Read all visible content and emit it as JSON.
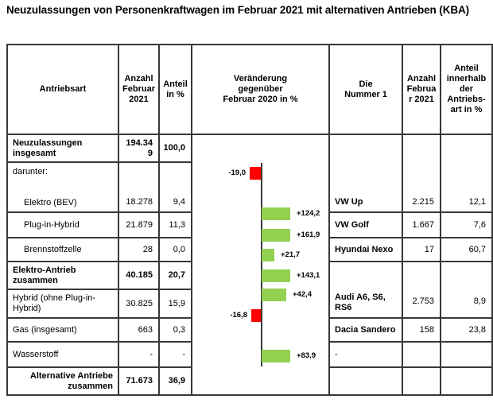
{
  "title": "Neuzulassungen von Personenkraftwagen im Februar 2021 mit alternativen Antrieben (KBA)",
  "table": {
    "headers": {
      "antriebsart": "Antriebsart",
      "anzahl": "Anzahl Februar 2021",
      "anteil": "Anteil in %",
      "veraenderung": "Veränderung gegenüber Februar 2020 in %",
      "nummer1": "Die Nummer 1",
      "anzahl2": "Anzahl Februar 2021",
      "anteil_innerhalb": "Anteil innerhalb der Antriebs- art in %"
    },
    "rows": {
      "insgesamt": {
        "label": "Neuzulassungen insgesamt",
        "anzahl": "194.349",
        "anteil": "100,0"
      },
      "darunter_label": "darunter:",
      "elektro_bev": {
        "label": "Elektro (BEV)",
        "anzahl": "18.278",
        "anteil": "9,4"
      },
      "plugin_hybrid": {
        "label": "Plug-in-Hybrid",
        "anzahl": "21.879",
        "anteil": "11,3"
      },
      "brennstoffzelle": {
        "label": "Brennstoffzelle",
        "anzahl": "28",
        "anteil": "0,0"
      },
      "elektro_zusammen": {
        "label": "Elektro-Antrieb zusammen",
        "anzahl": "40.185",
        "anteil": "20,7"
      },
      "hybrid": {
        "label": "Hybrid (ohne Plug-in-Hybrid)",
        "anzahl": "30.825",
        "anteil": "15,9"
      },
      "gas": {
        "label": "Gas (insgesamt)",
        "anzahl": "663",
        "anteil": "0,3"
      },
      "wasserstoff": {
        "label": "Wasserstoff",
        "anzahl": "-",
        "anteil": "-"
      },
      "alternative_zusammen": {
        "label": "Alternative Antriebe zusammen",
        "anzahl": "71.673",
        "anteil": "36,9"
      }
    },
    "top_models": {
      "elektro_bev": {
        "name": "VW Up",
        "anzahl": "2.215",
        "anteil": "12,1"
      },
      "plugin_hybrid": {
        "name": "VW Golf",
        "anzahl": "1.667",
        "anteil": "7,6"
      },
      "brennstoffzelle": {
        "name": "Hyundai Nexo",
        "anzahl": "17",
        "anteil": "60,7"
      },
      "hybrid": {
        "name": "Audi A6, S6, RS6",
        "anzahl": "2.753",
        "anteil": "8,9"
      },
      "gas": {
        "name": "Dacia Sandero",
        "anzahl": "158",
        "anteil": "23,8"
      },
      "wasserstoff": {
        "name": "-",
        "anzahl": "",
        "anteil": ""
      }
    }
  },
  "chart_data": {
    "type": "bar",
    "orientation": "horizontal",
    "title": "Veränderung gegenüber Februar 2020 in %",
    "categories": [
      "Neuzulassungen insgesamt",
      "Elektro (BEV)",
      "Plug-in-Hybrid",
      "Brennstoffzelle",
      "Elektro-Antrieb zusammen",
      "Hybrid (ohne Plug-in-Hybrid)",
      "Gas (insgesamt)",
      "Wasserstoff"
    ],
    "values": [
      -19.0,
      124.2,
      161.9,
      21.7,
      143.1,
      42.4,
      -16.8,
      83.9
    ],
    "labels": [
      "-19,0",
      "+124,2",
      "+161,9",
      "+21,7",
      "+143,1",
      "+42,4",
      "-16,8",
      "+83,9"
    ],
    "xlim": [
      -50,
      50
    ],
    "grid": false,
    "legend": "none",
    "colors": {
      "positive": "#92D050",
      "negative": "#FF0000"
    }
  }
}
